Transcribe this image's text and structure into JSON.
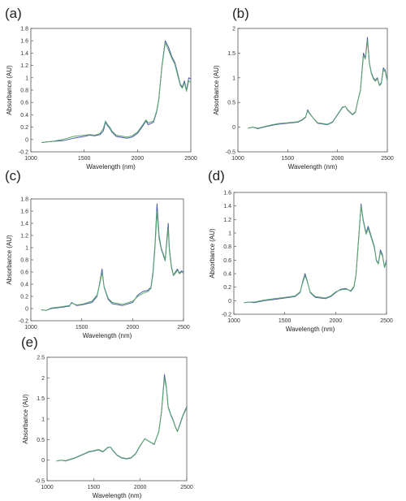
{
  "chart_data": [
    {
      "label": "(a)",
      "type": "line",
      "xlabel": "Wavelength (nm)",
      "ylabel": "Absorbance (AU)",
      "xlim": [
        1000,
        2500
      ],
      "ylim": [
        -0.2,
        1.8
      ],
      "xticks": [
        "1000",
        "1500",
        "2000",
        "2500"
      ],
      "yticks": [
        "-0.2",
        "0",
        "0.2",
        "0.4",
        "0.6",
        "0.8",
        "1",
        "1.2",
        "1.4",
        "1.6",
        "1.8"
      ],
      "series": [
        {
          "color": "#4a5aa8",
          "x": [
            1100,
            1150,
            1200,
            1300,
            1400,
            1500,
            1550,
            1600,
            1650,
            1680,
            1700,
            1720,
            1740,
            1760,
            1800,
            1900,
            1950,
            2000,
            2050,
            2080,
            2100,
            2150,
            2180,
            2200,
            2230,
            2260,
            2290,
            2320,
            2350,
            2380,
            2400,
            2420,
            2440,
            2460,
            2480,
            2500
          ],
          "y": [
            -0.05,
            -0.04,
            -0.03,
            -0.02,
            0.02,
            0.05,
            0.07,
            0.06,
            0.08,
            0.14,
            0.28,
            0.22,
            0.18,
            0.12,
            0.05,
            0.02,
            0.04,
            0.1,
            0.22,
            0.3,
            0.24,
            0.28,
            0.45,
            0.65,
            1.2,
            1.6,
            1.5,
            1.35,
            1.25,
            1.05,
            0.9,
            0.85,
            0.95,
            0.8,
            1.0,
            0.98
          ]
        },
        {
          "color": "#5aa86a",
          "x": [
            1100,
            1150,
            1200,
            1300,
            1400,
            1500,
            1550,
            1600,
            1650,
            1680,
            1700,
            1720,
            1740,
            1760,
            1800,
            1900,
            1950,
            2000,
            2050,
            2080,
            2100,
            2150,
            2180,
            2200,
            2230,
            2260,
            2290,
            2320,
            2350,
            2380,
            2400,
            2420,
            2440,
            2460,
            2480,
            2500
          ],
          "y": [
            -0.05,
            -0.04,
            -0.03,
            0.0,
            0.05,
            0.07,
            0.08,
            0.07,
            0.1,
            0.18,
            0.3,
            0.24,
            0.2,
            0.14,
            0.07,
            0.04,
            0.06,
            0.12,
            0.24,
            0.32,
            0.27,
            0.3,
            0.47,
            0.66,
            1.18,
            1.57,
            1.45,
            1.32,
            1.22,
            1.02,
            0.88,
            0.83,
            0.92,
            0.78,
            0.95,
            0.93
          ]
        }
      ]
    },
    {
      "label": "(b)",
      "type": "line",
      "xlabel": "Wavelength (nm)",
      "ylabel": "Absorbance (AU)",
      "xlim": [
        1000,
        2500
      ],
      "ylim": [
        -0.5,
        2
      ],
      "xticks": [
        "1000",
        "1500",
        "2000",
        "2500"
      ],
      "yticks": [
        "-0.5",
        "0",
        "0.5",
        "1",
        "1.5",
        "2"
      ],
      "series": [
        {
          "color": "#4a5aa8",
          "x": [
            1100,
            1150,
            1200,
            1300,
            1400,
            1500,
            1600,
            1650,
            1680,
            1700,
            1720,
            1750,
            1800,
            1900,
            1950,
            2000,
            2050,
            2080,
            2100,
            2150,
            2180,
            2200,
            2230,
            2260,
            2280,
            2300,
            2320,
            2340,
            2360,
            2380,
            2400,
            2420,
            2440,
            2460,
            2480,
            2500
          ],
          "y": [
            -0.02,
            0.0,
            -0.03,
            0.02,
            0.06,
            0.08,
            0.1,
            0.15,
            0.2,
            0.35,
            0.28,
            0.2,
            0.08,
            0.05,
            0.1,
            0.25,
            0.4,
            0.42,
            0.35,
            0.25,
            0.3,
            0.5,
            0.75,
            1.5,
            1.4,
            1.82,
            1.3,
            1.1,
            1.0,
            0.95,
            1.0,
            0.85,
            0.9,
            1.2,
            1.15,
            0.95
          ]
        },
        {
          "color": "#5aa86a",
          "x": [
            1100,
            1150,
            1200,
            1300,
            1400,
            1500,
            1600,
            1650,
            1680,
            1700,
            1720,
            1750,
            1800,
            1900,
            1950,
            2000,
            2050,
            2080,
            2100,
            2150,
            2180,
            2200,
            2230,
            2260,
            2280,
            2300,
            2320,
            2340,
            2360,
            2380,
            2400,
            2420,
            2440,
            2460,
            2480,
            2500
          ],
          "y": [
            -0.02,
            0.0,
            -0.02,
            0.03,
            0.07,
            0.09,
            0.11,
            0.16,
            0.21,
            0.33,
            0.27,
            0.2,
            0.09,
            0.06,
            0.11,
            0.26,
            0.41,
            0.42,
            0.36,
            0.26,
            0.31,
            0.5,
            0.74,
            1.45,
            1.38,
            1.76,
            1.28,
            1.08,
            0.98,
            0.93,
            0.98,
            0.84,
            0.88,
            1.16,
            1.12,
            0.93
          ]
        }
      ]
    },
    {
      "label": "(c)",
      "type": "line",
      "xlabel": "Wavelength (nm)",
      "ylabel": "Absorbance (AU)",
      "xlim": [
        1000,
        2500
      ],
      "ylim": [
        -0.2,
        1.8
      ],
      "xticks": [
        "1000",
        "1500",
        "2000",
        "2500"
      ],
      "yticks": [
        "-0.2",
        "0",
        "0.2",
        "0.4",
        "0.6",
        "0.8",
        "1",
        "1.2",
        "1.4",
        "1.6",
        "1.8"
      ],
      "series": [
        {
          "color": "#4a5aa8",
          "x": [
            1100,
            1150,
            1200,
            1300,
            1380,
            1400,
            1450,
            1500,
            1600,
            1650,
            1680,
            1700,
            1720,
            1760,
            1800,
            1900,
            2000,
            2050,
            2100,
            2150,
            2180,
            2200,
            2220,
            2240,
            2260,
            2280,
            2300,
            2320,
            2340,
            2350,
            2360,
            2380,
            2400,
            2420,
            2440,
            2460,
            2480,
            2500
          ],
          "y": [
            -0.02,
            -0.03,
            0.0,
            0.02,
            0.04,
            0.1,
            0.05,
            0.06,
            0.1,
            0.2,
            0.45,
            0.65,
            0.35,
            0.15,
            0.08,
            0.05,
            0.1,
            0.22,
            0.28,
            0.3,
            0.35,
            0.6,
            1.05,
            1.72,
            1.2,
            1.0,
            0.9,
            0.8,
            1.2,
            1.4,
            1.0,
            0.7,
            0.55,
            0.6,
            0.65,
            0.58,
            0.62,
            0.6
          ]
        },
        {
          "color": "#5aa86a",
          "x": [
            1100,
            1150,
            1200,
            1300,
            1380,
            1400,
            1450,
            1500,
            1600,
            1650,
            1680,
            1700,
            1720,
            1760,
            1800,
            1900,
            2000,
            2050,
            2100,
            2150,
            2180,
            2200,
            2220,
            2240,
            2260,
            2280,
            2300,
            2320,
            2340,
            2350,
            2360,
            2380,
            2400,
            2420,
            2440,
            2460,
            2480,
            2500
          ],
          "y": [
            -0.02,
            -0.03,
            0.01,
            0.03,
            0.05,
            0.09,
            0.06,
            0.07,
            0.12,
            0.22,
            0.42,
            0.6,
            0.36,
            0.17,
            0.1,
            0.07,
            0.12,
            0.2,
            0.25,
            0.28,
            0.33,
            0.56,
            1.0,
            1.6,
            1.15,
            0.98,
            0.88,
            0.78,
            1.15,
            1.32,
            0.96,
            0.68,
            0.54,
            0.58,
            0.63,
            0.57,
            0.6,
            0.58
          ]
        }
      ]
    },
    {
      "label": "(d)",
      "type": "line",
      "xlabel": "Wavelength (nm)",
      "ylabel": "Absorbance (AU)",
      "xlim": [
        1000,
        2500
      ],
      "ylim": [
        -0.2,
        1.6
      ],
      "xticks": [
        "1000",
        "1500",
        "2000",
        "2500"
      ],
      "yticks": [
        "-0.2",
        "0",
        "0.2",
        "0.4",
        "0.6",
        "0.8",
        "1",
        "1.2",
        "1.4",
        "1.6"
      ],
      "series": [
        {
          "color": "#4a5aa8",
          "x": [
            1100,
            1150,
            1200,
            1300,
            1400,
            1500,
            1600,
            1650,
            1680,
            1700,
            1720,
            1750,
            1800,
            1900,
            1950,
            2000,
            2050,
            2100,
            2150,
            2180,
            2200,
            2220,
            2250,
            2270,
            2300,
            2320,
            2350,
            2380,
            2400,
            2420,
            2440,
            2460,
            2480,
            2500
          ],
          "y": [
            -0.03,
            -0.02,
            -0.03,
            0.0,
            0.02,
            0.04,
            0.06,
            0.12,
            0.3,
            0.4,
            0.3,
            0.12,
            0.05,
            0.03,
            0.06,
            0.12,
            0.17,
            0.18,
            0.14,
            0.2,
            0.38,
            0.8,
            1.43,
            1.2,
            1.0,
            1.1,
            0.95,
            0.8,
            0.6,
            0.55,
            0.75,
            0.68,
            0.5,
            0.6
          ]
        },
        {
          "color": "#5aa86a",
          "x": [
            1100,
            1150,
            1200,
            1300,
            1400,
            1500,
            1600,
            1650,
            1680,
            1700,
            1720,
            1750,
            1800,
            1900,
            1950,
            2000,
            2050,
            2100,
            2150,
            2180,
            2200,
            2220,
            2250,
            2270,
            2300,
            2320,
            2350,
            2380,
            2400,
            2420,
            2440,
            2460,
            2480,
            2500
          ],
          "y": [
            -0.03,
            -0.02,
            -0.02,
            0.01,
            0.03,
            0.05,
            0.07,
            0.13,
            0.28,
            0.37,
            0.29,
            0.13,
            0.06,
            0.04,
            0.07,
            0.13,
            0.16,
            0.17,
            0.15,
            0.21,
            0.37,
            0.78,
            1.4,
            1.18,
            0.98,
            1.07,
            0.93,
            0.78,
            0.59,
            0.54,
            0.72,
            0.66,
            0.49,
            0.58
          ]
        }
      ]
    },
    {
      "label": "(e)",
      "type": "line",
      "xlabel": "Wavelength (nm)",
      "ylabel": "Absorbance (AU)",
      "xlim": [
        1000,
        2500
      ],
      "ylim": [
        -0.5,
        2.5
      ],
      "xticks": [
        "1000",
        "1500",
        "2000",
        "2500"
      ],
      "yticks": [
        "-0.5",
        "0",
        "0.5",
        "1",
        "1.5",
        "2",
        "2.5"
      ],
      "series": [
        {
          "color": "#4a5aa8",
          "x": [
            1100,
            1150,
            1200,
            1300,
            1400,
            1450,
            1500,
            1550,
            1600,
            1650,
            1680,
            1700,
            1750,
            1800,
            1850,
            1900,
            1950,
            2000,
            2050,
            2100,
            2150,
            2200,
            2230,
            2260,
            2280,
            2300,
            2330,
            2350,
            2380,
            2400,
            2430,
            2460,
            2500
          ],
          "y": [
            -0.02,
            0.0,
            -0.02,
            0.05,
            0.15,
            0.2,
            0.22,
            0.25,
            0.2,
            0.3,
            0.32,
            0.25,
            0.12,
            0.05,
            0.03,
            0.05,
            0.15,
            0.35,
            0.52,
            0.45,
            0.38,
            0.7,
            1.2,
            2.08,
            1.8,
            1.3,
            1.1,
            1.0,
            0.8,
            0.7,
            0.9,
            1.1,
            1.3
          ]
        },
        {
          "color": "#5aa86a",
          "x": [
            1100,
            1150,
            1200,
            1300,
            1400,
            1450,
            1500,
            1550,
            1600,
            1650,
            1680,
            1700,
            1750,
            1800,
            1850,
            1900,
            1950,
            2000,
            2050,
            2100,
            2150,
            2200,
            2230,
            2260,
            2280,
            2300,
            2330,
            2350,
            2380,
            2400,
            2430,
            2460,
            2500
          ],
          "y": [
            -0.02,
            0.0,
            -0.01,
            0.06,
            0.16,
            0.21,
            0.23,
            0.26,
            0.21,
            0.31,
            0.32,
            0.26,
            0.13,
            0.06,
            0.04,
            0.06,
            0.16,
            0.36,
            0.52,
            0.45,
            0.39,
            0.69,
            1.18,
            2.0,
            1.76,
            1.28,
            1.08,
            0.98,
            0.79,
            0.69,
            0.88,
            1.08,
            1.27
          ]
        }
      ]
    }
  ]
}
